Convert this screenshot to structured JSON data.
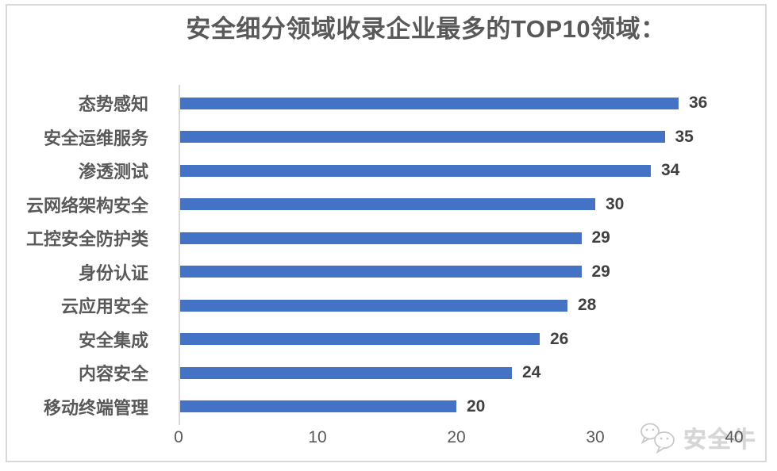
{
  "chart_data": {
    "type": "bar",
    "orientation": "horizontal",
    "title": "安全细分领域收录企业最多的TOP10领域：",
    "categories": [
      "态势感知",
      "安全运维服务",
      "渗透测试",
      "云网络架构安全",
      "工控安全防护类",
      "身份认证",
      "云应用安全",
      "安全集成",
      "内容安全",
      "移动终端管理"
    ],
    "values": [
      36,
      35,
      34,
      30,
      29,
      29,
      28,
      26,
      24,
      20
    ],
    "xlabel": "",
    "ylabel": "",
    "xlim": [
      0,
      40
    ],
    "x_ticks": [
      "0",
      "10",
      "20",
      "30",
      "40"
    ],
    "grid": false,
    "legend": false,
    "data_labels": true,
    "bar_color": "#4472C4"
  },
  "watermark": {
    "label": "安全牛",
    "icon": "wechat-icon"
  },
  "colors": {
    "bar": "#4472C4",
    "title_text": "#595959",
    "category_text": "#595959",
    "value_text": "#404040",
    "tick_text": "#595959",
    "axis_line": "#D9D9D9",
    "border": "#D9D9D9",
    "watermark_text": "#D6D6D6"
  }
}
